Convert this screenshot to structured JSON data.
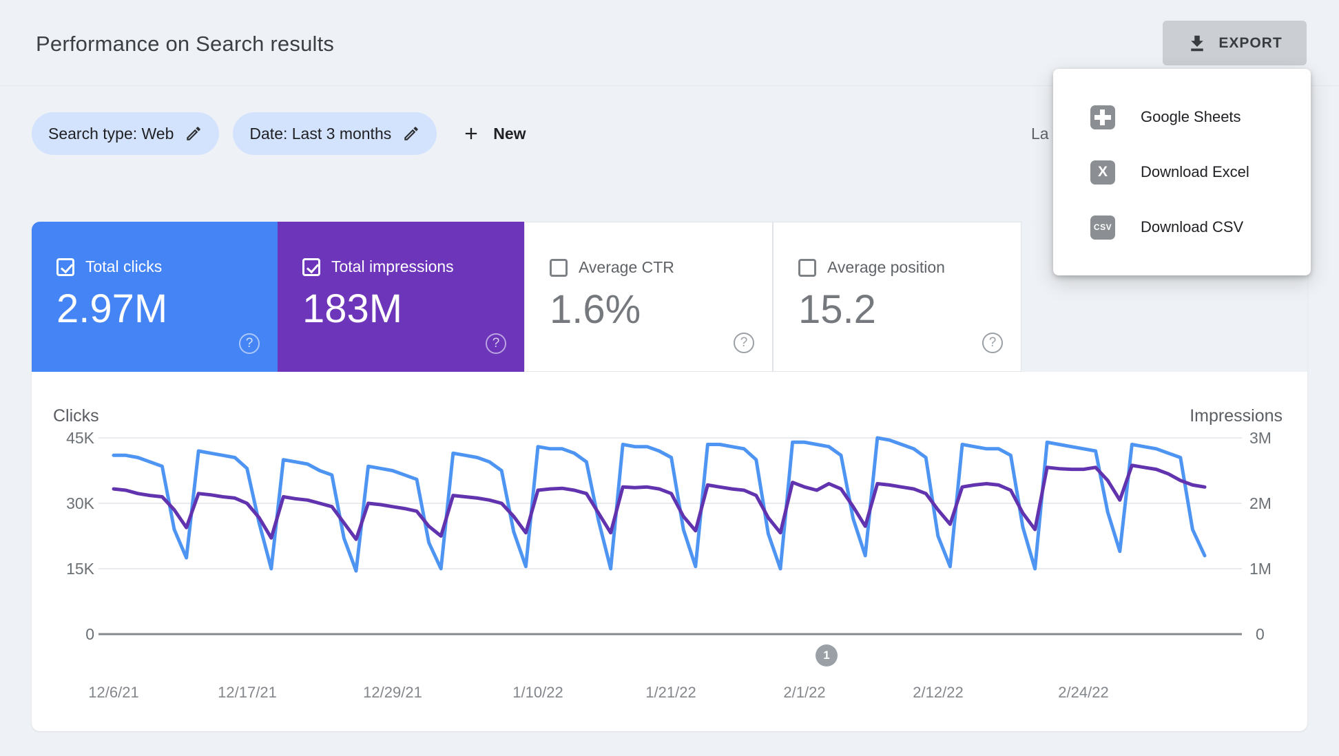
{
  "header": {
    "title": "Performance on Search results",
    "export_label": "EXPORT",
    "last_updated_partial": "La"
  },
  "filters": {
    "search_type_chip": "Search type: Web",
    "date_chip": "Date: Last 3 months",
    "new_label": "New"
  },
  "export_menu": {
    "items": [
      {
        "label": "Google Sheets",
        "icon": "google-sheets-icon",
        "glyph": ""
      },
      {
        "label": "Download Excel",
        "icon": "excel-icon",
        "glyph": "X"
      },
      {
        "label": "Download CSV",
        "icon": "csv-icon",
        "glyph": "CSV"
      }
    ]
  },
  "metrics": [
    {
      "label": "Total clicks",
      "value": "2.97M",
      "checked": true,
      "color": "#4584f4"
    },
    {
      "label": "Total impressions",
      "value": "183M",
      "checked": true,
      "color": "#6c35ba"
    },
    {
      "label": "Average CTR",
      "value": "1.6%",
      "checked": false,
      "color": "#ffffff"
    },
    {
      "label": "Average position",
      "value": "15.2",
      "checked": false,
      "color": "#ffffff"
    }
  ],
  "pagination": {
    "page": "1"
  },
  "chart_data": {
    "type": "line",
    "x_start_date": "12/6/21",
    "x_step": "1 day",
    "x_ticks": [
      "12/6/21",
      "12/17/21",
      "12/29/21",
      "1/10/22",
      "1/21/22",
      "2/1/22",
      "2/12/22",
      "2/24/22"
    ],
    "grid": true,
    "left_axis": {
      "label": "Clicks",
      "ticks": [
        "45K",
        "30K",
        "15K",
        "0"
      ],
      "max": 45000,
      "unit": "K"
    },
    "right_axis": {
      "label": "Impressions",
      "ticks": [
        "3M",
        "2M",
        "1M",
        "0"
      ],
      "max": 3000000,
      "unit": "M"
    },
    "series": [
      {
        "name": "Clicks",
        "axis": "left",
        "color": "#4e95f3",
        "unit": "thousands",
        "values": [
          41,
          41,
          40.5,
          39.5,
          38.5,
          24,
          17.5,
          42,
          41.5,
          41,
          40.5,
          38,
          25.5,
          15,
          40,
          39.5,
          39,
          37.5,
          36.5,
          22,
          14.5,
          38.5,
          38,
          37.5,
          36.5,
          35.5,
          21,
          15,
          41.5,
          41,
          40.5,
          39.5,
          37.5,
          23.5,
          15.5,
          43,
          42.5,
          42.5,
          41.5,
          39.5,
          26,
          15,
          43.5,
          43,
          43,
          42,
          40.5,
          24,
          15.5,
          43.5,
          43.5,
          43,
          42.5,
          40,
          23,
          15,
          44,
          44,
          43.5,
          43,
          41,
          26.5,
          18,
          45,
          44.5,
          43.5,
          42.5,
          40.5,
          22.5,
          15.5,
          43.5,
          43,
          42.5,
          42.5,
          41,
          24.5,
          15,
          44,
          43.5,
          43,
          42.5,
          42,
          28,
          19,
          43.5,
          43,
          42.5,
          41.5,
          40.5,
          24,
          18
        ]
      },
      {
        "name": "Impressions",
        "axis": "right",
        "color": "#6133ae",
        "unit": "millions",
        "values": [
          2.22,
          2.2,
          2.15,
          2.12,
          2.1,
          1.9,
          1.63,
          2.15,
          2.13,
          2.1,
          2.08,
          2.0,
          1.78,
          1.47,
          2.1,
          2.07,
          2.05,
          2.0,
          1.95,
          1.7,
          1.45,
          2.0,
          1.98,
          1.95,
          1.92,
          1.88,
          1.65,
          1.5,
          2.12,
          2.1,
          2.08,
          2.05,
          2.0,
          1.8,
          1.55,
          2.2,
          2.22,
          2.23,
          2.2,
          2.15,
          1.85,
          1.55,
          2.25,
          2.24,
          2.25,
          2.22,
          2.15,
          1.8,
          1.58,
          2.28,
          2.25,
          2.22,
          2.2,
          2.12,
          1.78,
          1.55,
          2.32,
          2.25,
          2.2,
          2.3,
          2.22,
          1.95,
          1.65,
          2.3,
          2.28,
          2.25,
          2.22,
          2.15,
          1.9,
          1.68,
          2.25,
          2.28,
          2.3,
          2.28,
          2.2,
          1.85,
          1.6,
          2.55,
          2.53,
          2.52,
          2.52,
          2.55,
          2.35,
          2.05,
          2.58,
          2.55,
          2.52,
          2.45,
          2.35,
          2.28,
          2.25
        ]
      }
    ]
  }
}
